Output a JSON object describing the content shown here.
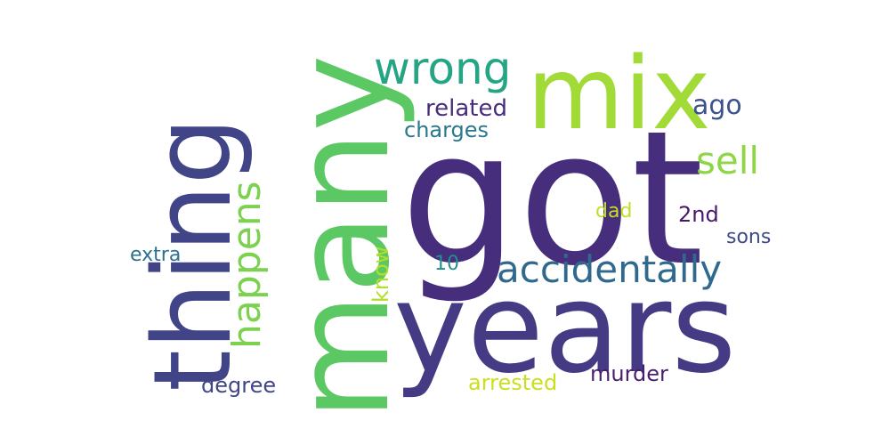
{
  "words": {
    "got": {
      "text": "got",
      "color": "#462E7C"
    },
    "years": {
      "text": "years",
      "color": "#443B84"
    },
    "many": {
      "text": "many",
      "color": "#5CC863"
    },
    "thing": {
      "text": "thing",
      "color": "#414487"
    },
    "mix": {
      "text": "mix",
      "color": "#A2DA37"
    },
    "wrong": {
      "text": "wrong",
      "color": "#25A584"
    },
    "happens": {
      "text": "happens",
      "color": "#7CD250"
    },
    "accidentally": {
      "text": "accidentally",
      "color": "#30698E"
    },
    "sell": {
      "text": "sell",
      "color": "#8ED645"
    },
    "related": {
      "text": "related",
      "color": "#472D7B"
    },
    "ago": {
      "text": "ago",
      "color": "#3B528B"
    },
    "charges": {
      "text": "charges",
      "color": "#2A788E"
    },
    "dad": {
      "text": "dad",
      "color": "#C2DF23"
    },
    "2nd": {
      "text": "2nd",
      "color": "#48186A"
    },
    "sons": {
      "text": "sons",
      "color": "#3E4989"
    },
    "know": {
      "text": "know",
      "color": "#B5DE2B"
    },
    "extra": {
      "text": "extra",
      "color": "#2C728E"
    },
    "10": {
      "text": "10",
      "color": "#21908C"
    },
    "degree": {
      "text": "degree",
      "color": "#404688"
    },
    "arrested": {
      "text": "arrested",
      "color": "#C8E020"
    },
    "murder": {
      "text": "murder",
      "color": "#481F70"
    }
  }
}
